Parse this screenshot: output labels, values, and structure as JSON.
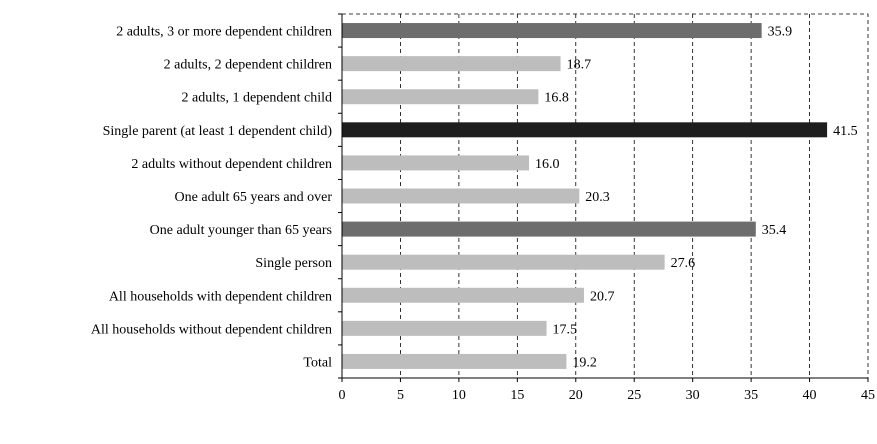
{
  "chart_data": {
    "type": "bar",
    "orientation": "horizontal",
    "categories": [
      "2 adults, 3 or more dependent children",
      "2 adults, 2 dependent children",
      "2 adults, 1 dependent child",
      "Single parent (at least 1 dependent child)",
      "2 adults without dependent children",
      "One adult 65 years and over",
      "One adult younger than 65 years",
      "Single person",
      "All households with dependent children",
      "All households without dependent children",
      "Total"
    ],
    "values": [
      35.9,
      18.7,
      16.8,
      41.5,
      16.0,
      20.3,
      35.4,
      27.6,
      20.7,
      17.5,
      19.2
    ],
    "value_labels": [
      "35.9",
      "18.7",
      "16.8",
      "41.5",
      "16.0",
      "20.3",
      "35.4",
      "27.6",
      "20.7",
      "17.5",
      "19.2"
    ],
    "bar_colors": [
      "#6d6d6d",
      "#bdbdbd",
      "#bdbdbd",
      "#1e1e1e",
      "#bdbdbd",
      "#bdbdbd",
      "#6d6d6d",
      "#bdbdbd",
      "#bdbdbd",
      "#bdbdbd",
      "#bdbdbd"
    ],
    "xlim": [
      0,
      45
    ],
    "xticks": [
      0,
      5,
      10,
      15,
      20,
      25,
      30,
      35,
      40,
      45
    ],
    "tick_labels": [
      "0",
      "5",
      "10",
      "15",
      "20",
      "25",
      "30",
      "35",
      "40",
      "45"
    ],
    "grid": true,
    "grid_style": "dashed",
    "legend": "none",
    "title": "",
    "xlabel": "",
    "ylabel": ""
  }
}
